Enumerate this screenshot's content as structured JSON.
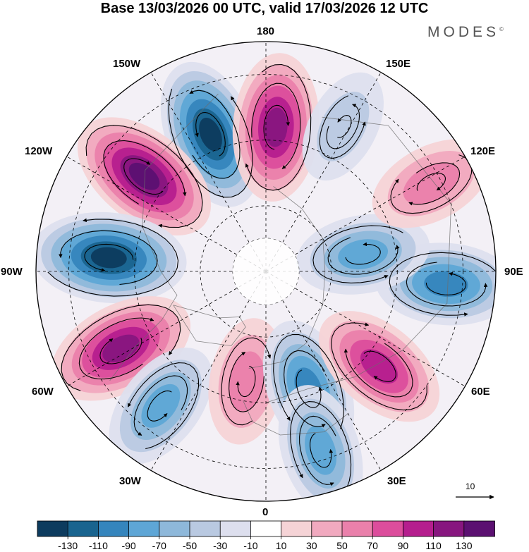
{
  "title": "Base 13/03/2026 00 UTC, valid 17/03/2026 12 UTC",
  "brand": {
    "name": "MODES",
    "mark": "©"
  },
  "longitude_labels": {
    "lon_180": "180",
    "lon_150e": "150E",
    "lon_120e": "120E",
    "lon_90e": "90E",
    "lon_60e": "60E",
    "lon_30e": "30E",
    "lon_0": "0",
    "lon_30w": "30W",
    "lon_60w": "60W",
    "lon_90w": "90W",
    "lon_120w": "120W",
    "lon_150w": "150W"
  },
  "reference_vector": {
    "label": "10"
  },
  "colorbar": {
    "colors": [
      "#0d3b5e",
      "#19648f",
      "#3585bd",
      "#5ea6d6",
      "#8eb8da",
      "#b9c9e1",
      "#dddfee",
      "#ffffff",
      "#f5d3d6",
      "#f1a9bf",
      "#ea80ab",
      "#dc4d9c",
      "#b51e8e",
      "#87167f",
      "#5b1071"
    ],
    "tick_labels": [
      "-130",
      "-110",
      "-90",
      "-70",
      "-50",
      "-30",
      "-10",
      "10",
      "30",
      "50",
      "70",
      "90",
      "110",
      "130"
    ]
  },
  "anomaly_field": {
    "units_note": "",
    "centers": [
      {
        "name": "neg-aleutian",
        "value": -120,
        "lon": -158,
        "colat": 45
      },
      {
        "name": "pos-bering",
        "value": 110,
        "lon": 176,
        "colat": 44
      },
      {
        "name": "pos-alaska",
        "value": 125,
        "lon": -128,
        "colat": 47
      },
      {
        "name": "neg-canada",
        "value": -130,
        "lon": -95,
        "colat": 48
      },
      {
        "name": "pos-labrador",
        "value": 115,
        "lon": -62,
        "colat": 50
      },
      {
        "name": "neg-atlantic",
        "value": -70,
        "lon": -38,
        "colat": 52
      },
      {
        "name": "pos-greenland",
        "value": 50,
        "lon": -10,
        "colat": 34
      },
      {
        "name": "neg-scandinavia",
        "value": -90,
        "lon": 20,
        "colat": 38
      },
      {
        "name": "neg-europe",
        "value": -70,
        "lon": 17,
        "colat": 57
      },
      {
        "name": "pos-siberia",
        "value": 90,
        "lon": 50,
        "colat": 45
      },
      {
        "name": "neg-siberia",
        "value": -90,
        "lon": 86,
        "colat": 55
      },
      {
        "name": "neg-kara",
        "value": -70,
        "lon": 100,
        "colat": 30
      },
      {
        "name": "pos-east-asia",
        "value": 50,
        "lon": 118,
        "colat": 57
      },
      {
        "name": "neg-kamchatka",
        "value": -20,
        "lon": 152,
        "colat": 50
      }
    ]
  }
}
